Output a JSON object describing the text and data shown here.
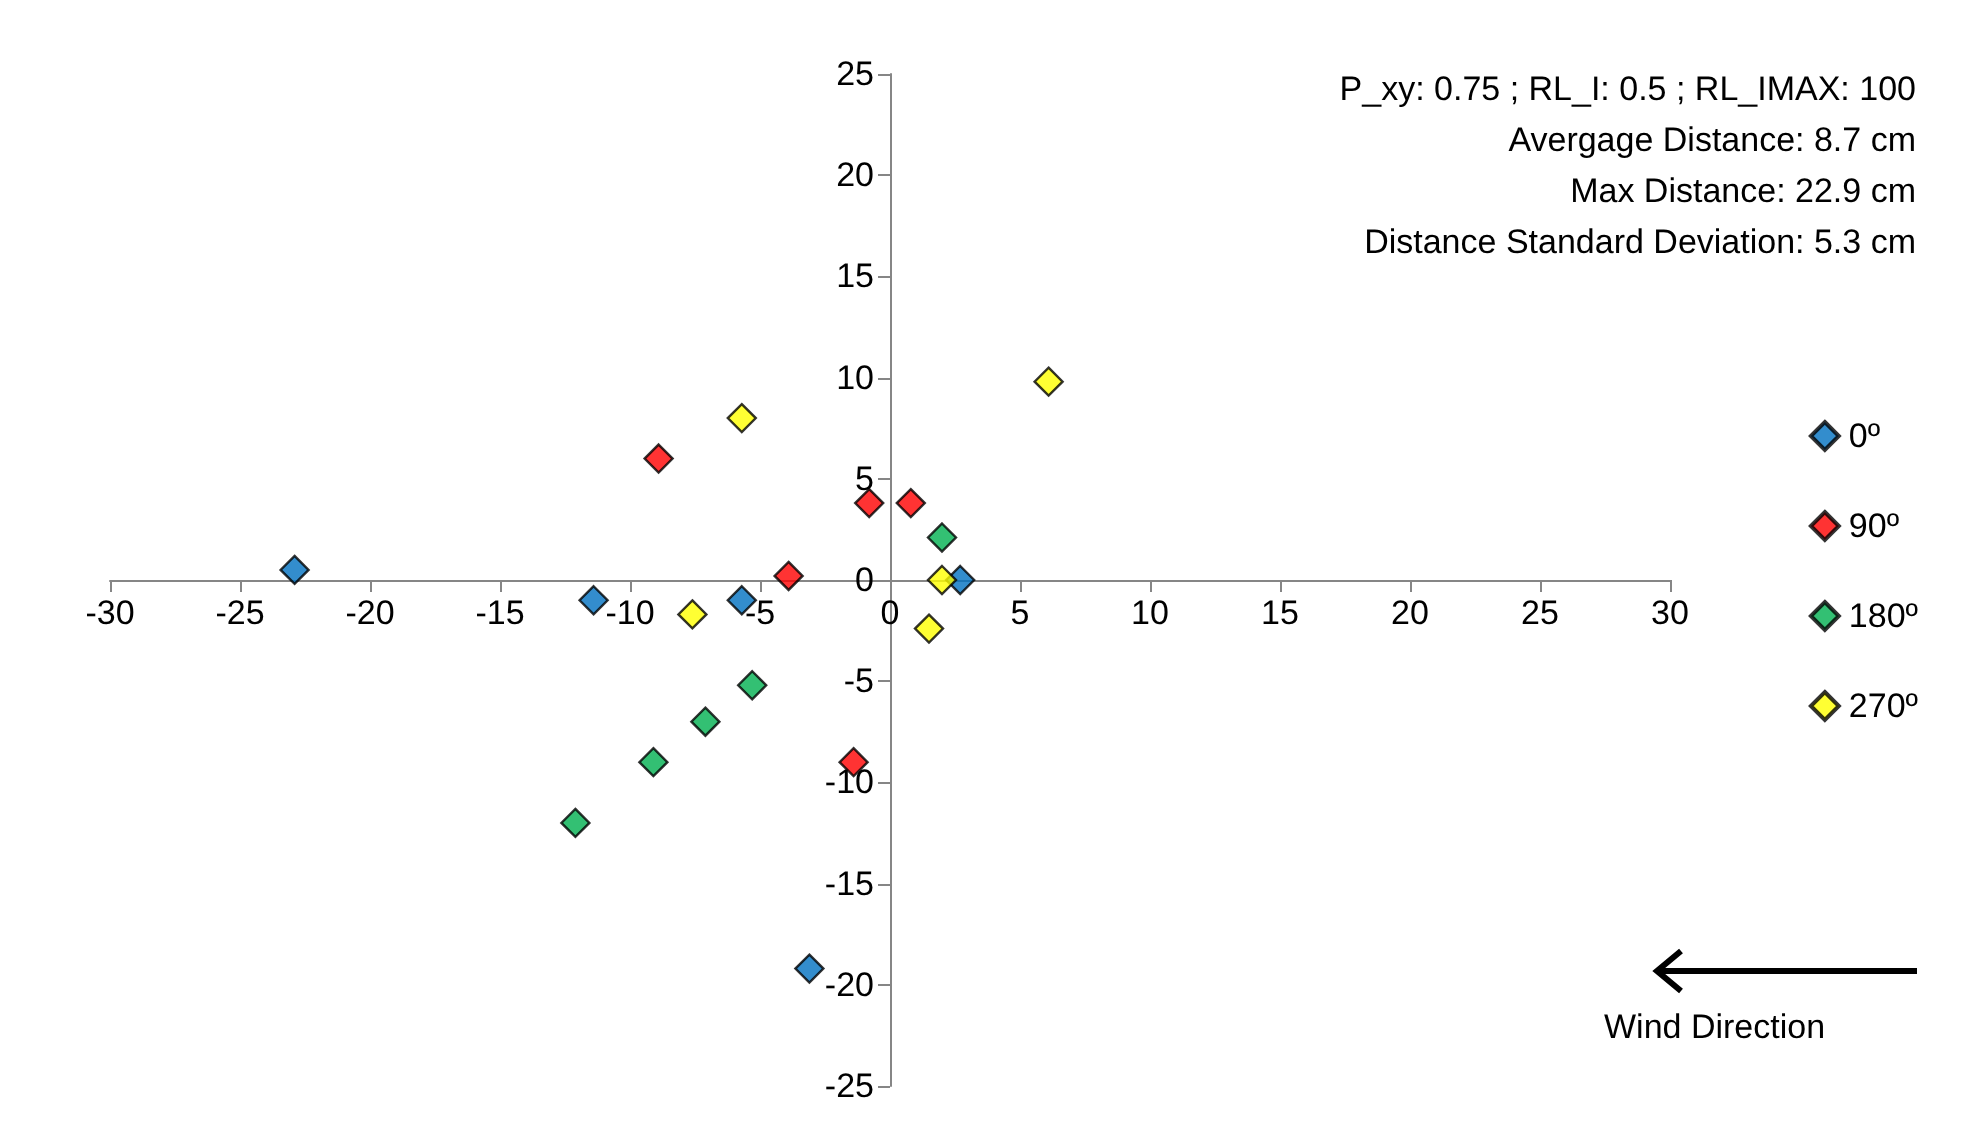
{
  "chart_data": {
    "type": "scatter",
    "marker": "diamond",
    "grid": false,
    "legend": "right",
    "xlim": [
      -30,
      30
    ],
    "xticks": [
      -30,
      -25,
      -20,
      -15,
      -10,
      -5,
      0,
      5,
      10,
      15,
      20,
      25,
      30
    ],
    "ylim": [
      -25,
      25
    ],
    "yticks": [
      -25,
      -20,
      -15,
      -10,
      -5,
      0,
      5,
      10,
      15,
      20,
      25
    ],
    "series": [
      {
        "name": "0º",
        "color": "#0070c0",
        "x": [
          -22.9,
          -11.4,
          -5.7,
          2.7,
          -3.1
        ],
        "values": [
          0.5,
          -1,
          -1,
          0,
          -19.2
        ]
      },
      {
        "name": "90º",
        "color": "#ff0000",
        "x": [
          -8.9,
          -0.8,
          0.8,
          -3.9,
          -1.4
        ],
        "values": [
          6,
          3.8,
          3.8,
          0.2,
          -9
        ]
      },
      {
        "name": "180º",
        "color": "#00b050",
        "x": [
          2,
          -5.3,
          -7.1,
          -9.1,
          -12.1
        ],
        "values": [
          2.1,
          -5.2,
          -7,
          -9,
          -12
        ]
      },
      {
        "name": "270º",
        "color": "#ffff00",
        "x": [
          6.1,
          -5.7,
          -7.6,
          2,
          1.5
        ],
        "values": [
          9.8,
          8,
          -1.7,
          0,
          -2.4
        ]
      }
    ],
    "annotations": [
      "P_xy: 0.75 ; RL_I: 0.5 ; RL_IMAX: 100",
      "Avergage Distance: 8.7 cm",
      "Max Distance: 22.9 cm",
      "Distance Standard Deviation: 5.3 cm",
      "Wind Direction"
    ]
  }
}
